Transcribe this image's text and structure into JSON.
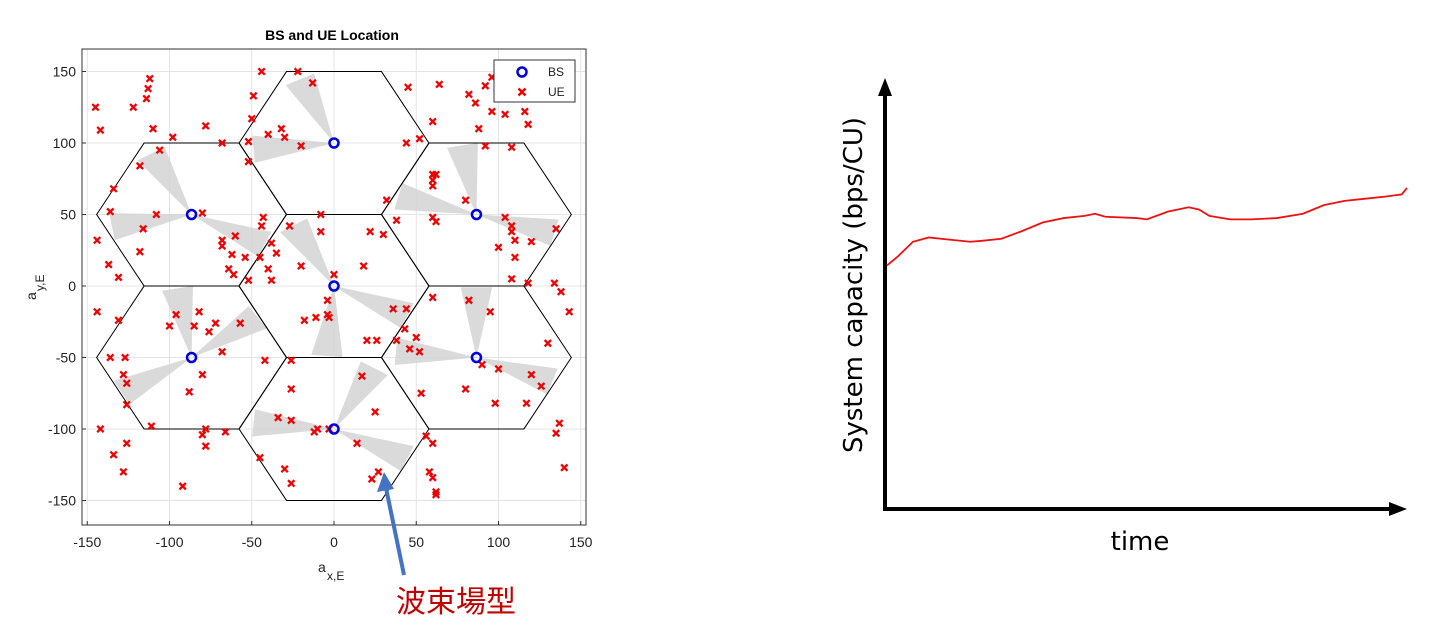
{
  "chart_data": [
    {
      "type": "scatter",
      "title": "BS and UE Location",
      "xlabel": "a",
      "xlabel_sub": "x,E",
      "ylabel": "a",
      "ylabel_sub": "y,E",
      "xlim": [
        -150,
        150
      ],
      "ylim": [
        -150,
        150
      ],
      "xticks": [
        "-150",
        "-100",
        "-50",
        "0",
        "50",
        "100",
        "150"
      ],
      "yticks": [
        "150",
        "100",
        "50",
        "0",
        "-50",
        "-100",
        "-150"
      ],
      "xtick_values": [
        -150,
        -100,
        -50,
        0,
        50,
        100,
        150
      ],
      "ytick_values": [
        150,
        100,
        50,
        0,
        -50,
        -100,
        -150
      ],
      "grid": true,
      "legend_position": "top-right",
      "legend": [
        {
          "label": "BS",
          "marker": "circle",
          "color": "#0000dd"
        },
        {
          "label": "UE",
          "marker": "x",
          "color": "#ee0000"
        }
      ],
      "hex_radius": 57.7,
      "bs": [
        [
          0,
          100
        ],
        [
          -86.6,
          50
        ],
        [
          86.6,
          50
        ],
        [
          0,
          0
        ],
        [
          -86.6,
          -50
        ],
        [
          86.6,
          -50
        ],
        [
          0,
          -100
        ]
      ],
      "beams": [
        [
          0,
          100,
          115
        ],
        [
          0,
          100,
          185
        ],
        [
          -86.6,
          50,
          120
        ],
        [
          -86.6,
          50,
          190
        ],
        [
          -86.6,
          50,
          335
        ],
        [
          86.6,
          50,
          100
        ],
        [
          86.6,
          50,
          165
        ],
        [
          86.6,
          50,
          345
        ],
        [
          0,
          0,
          120
        ],
        [
          0,
          0,
          265
        ],
        [
          0,
          0,
          335
        ],
        [
          -86.6,
          -50,
          35
        ],
        [
          -86.6,
          -50,
          100
        ],
        [
          -86.6,
          -50,
          210
        ],
        [
          86.6,
          -50,
          90
        ],
        [
          86.6,
          -50,
          175
        ],
        [
          86.6,
          -50,
          340
        ],
        [
          0,
          -100,
          60
        ],
        [
          0,
          -100,
          175
        ],
        [
          0,
          -100,
          335
        ]
      ],
      "ue": [
        [
          -145,
          125
        ],
        [
          -142,
          109
        ],
        [
          -112,
          145
        ],
        [
          -113,
          138
        ],
        [
          -122,
          125
        ],
        [
          -114,
          131
        ],
        [
          -98,
          104
        ],
        [
          -106,
          95
        ],
        [
          -78,
          112
        ],
        [
          -68,
          100
        ],
        [
          -110,
          110
        ],
        [
          -134,
          68
        ],
        [
          -136,
          52
        ],
        [
          -144,
          32
        ],
        [
          -131,
          6
        ],
        [
          -137,
          15
        ],
        [
          -118,
          84
        ],
        [
          -116,
          40
        ],
        [
          -118,
          24
        ],
        [
          -108,
          50
        ],
        [
          -80,
          51
        ],
        [
          -68,
          32
        ],
        [
          -68,
          28
        ],
        [
          -60,
          35
        ],
        [
          -62,
          22
        ],
        [
          -64,
          12
        ],
        [
          -61,
          8
        ],
        [
          -54,
          20
        ],
        [
          -52,
          4
        ],
        [
          -45,
          20
        ],
        [
          -52,
          101
        ],
        [
          -49,
          133
        ],
        [
          -50,
          117
        ],
        [
          -52,
          87
        ],
        [
          -44,
          150
        ],
        [
          -40,
          106
        ],
        [
          -32,
          110
        ],
        [
          -30,
          104
        ],
        [
          -20,
          98
        ],
        [
          -13,
          142
        ],
        [
          -22,
          150
        ],
        [
          -38,
          30
        ],
        [
          -44,
          42
        ],
        [
          -43,
          48
        ],
        [
          -27,
          42
        ],
        [
          -35,
          23
        ],
        [
          -40,
          12
        ],
        [
          -38,
          4
        ],
        [
          -20,
          14
        ],
        [
          -8,
          50
        ],
        [
          -8,
          38
        ],
        [
          -11,
          -22
        ],
        [
          -4,
          -10
        ],
        [
          -4,
          -20
        ],
        [
          -18,
          -24
        ],
        [
          -3,
          -22
        ],
        [
          0,
          8
        ],
        [
          -144,
          -18
        ],
        [
          -131,
          -24
        ],
        [
          -136,
          -50
        ],
        [
          -127,
          -50
        ],
        [
          -128,
          -62
        ],
        [
          -126,
          -68
        ],
        [
          -126,
          -83
        ],
        [
          -111,
          -98
        ],
        [
          -96,
          -20
        ],
        [
          -100,
          -28
        ],
        [
          -85,
          -28
        ],
        [
          -82,
          -18
        ],
        [
          -76,
          -32
        ],
        [
          -80,
          -62
        ],
        [
          -88,
          -74
        ],
        [
          -72,
          -26
        ],
        [
          -57,
          -26
        ],
        [
          -68,
          -46
        ],
        [
          -78,
          -100
        ],
        [
          -78,
          -112
        ],
        [
          -80,
          -104
        ],
        [
          -142,
          -100
        ],
        [
          -126,
          -110
        ],
        [
          -134,
          -118
        ],
        [
          -128,
          -130
        ],
        [
          -92,
          -140
        ],
        [
          -66,
          -102
        ],
        [
          -45,
          -120
        ],
        [
          -26,
          -94
        ],
        [
          -30,
          -128
        ],
        [
          -26,
          -138
        ],
        [
          -34,
          -92
        ],
        [
          -26,
          -52
        ],
        [
          -42,
          -52
        ],
        [
          -26,
          -72
        ],
        [
          -12,
          -102
        ],
        [
          -10,
          -100
        ],
        [
          -3,
          -100
        ],
        [
          14,
          -110
        ],
        [
          23,
          -135
        ],
        [
          27,
          -130
        ],
        [
          25,
          -88
        ],
        [
          17,
          -63
        ],
        [
          20,
          -38
        ],
        [
          26,
          -38
        ],
        [
          22,
          38
        ],
        [
          30,
          36
        ],
        [
          18,
          14
        ],
        [
          36,
          -16
        ],
        [
          44,
          -16
        ],
        [
          43,
          -30
        ],
        [
          38,
          -38
        ],
        [
          46,
          -44
        ],
        [
          32,
          60
        ],
        [
          38,
          46
        ],
        [
          60,
          48
        ],
        [
          62,
          45
        ],
        [
          60,
          78
        ],
        [
          62,
          78
        ],
        [
          60,
          74
        ],
        [
          60,
          70
        ],
        [
          64,
          141
        ],
        [
          60,
          115
        ],
        [
          45,
          139
        ],
        [
          44,
          100
        ],
        [
          52,
          103
        ],
        [
          82,
          134
        ],
        [
          86,
          128
        ],
        [
          92,
          140
        ],
        [
          96,
          122
        ],
        [
          96,
          146
        ],
        [
          116,
          122
        ],
        [
          118,
          113
        ],
        [
          108,
          97
        ],
        [
          104,
          120
        ],
        [
          112,
          148
        ],
        [
          100,
          27
        ],
        [
          108,
          38
        ],
        [
          110,
          32
        ],
        [
          110,
          20
        ],
        [
          108,
          5
        ],
        [
          118,
          2
        ],
        [
          108,
          42
        ],
        [
          120,
          31
        ],
        [
          135,
          40
        ],
        [
          134,
          2
        ],
        [
          138,
          -4
        ],
        [
          143,
          -18
        ],
        [
          130,
          -40
        ],
        [
          126,
          -70
        ],
        [
          117,
          -82
        ],
        [
          120,
          -62
        ],
        [
          100,
          -58
        ],
        [
          90,
          -55
        ],
        [
          80,
          -72
        ],
        [
          98,
          -82
        ],
        [
          52,
          -46
        ],
        [
          50,
          -36
        ],
        [
          53,
          -75
        ],
        [
          60,
          -110
        ],
        [
          56,
          -105
        ],
        [
          60,
          -134
        ],
        [
          62,
          -144
        ],
        [
          62,
          -146
        ],
        [
          58,
          -130
        ],
        [
          135,
          -103
        ],
        [
          137,
          -96
        ],
        [
          140,
          -127
        ],
        [
          104,
          48
        ],
        [
          92,
          98
        ],
        [
          80,
          60
        ],
        [
          82,
          -10
        ],
        [
          95,
          -18
        ],
        [
          60,
          -8
        ],
        [
          88,
          110
        ]
      ]
    },
    {
      "type": "line",
      "title": "",
      "xlabel": "time",
      "ylabel": "System capacity (bps/CU)",
      "ylim": [
        0,
        1
      ],
      "series": [
        {
          "color": "#ee1111",
          "x": [
            0,
            0.02,
            0.05,
            0.08,
            0.12,
            0.16,
            0.18,
            0.22,
            0.26,
            0.3,
            0.34,
            0.38,
            0.4,
            0.42,
            0.48,
            0.5,
            0.54,
            0.58,
            0.6,
            0.62,
            0.66,
            0.7,
            0.75,
            0.8,
            0.84,
            0.88,
            0.92,
            0.96,
            0.99,
            1.0
          ],
          "y": [
            0.565,
            0.585,
            0.62,
            0.63,
            0.625,
            0.62,
            0.622,
            0.627,
            0.645,
            0.665,
            0.675,
            0.68,
            0.685,
            0.678,
            0.675,
            0.672,
            0.69,
            0.7,
            0.695,
            0.68,
            0.672,
            0.672,
            0.675,
            0.685,
            0.705,
            0.715,
            0.72,
            0.725,
            0.73,
            0.745
          ]
        }
      ]
    }
  ],
  "annotation": {
    "text": "波束場型",
    "color": "#c00000",
    "arrow_color": "#4472c4"
  }
}
